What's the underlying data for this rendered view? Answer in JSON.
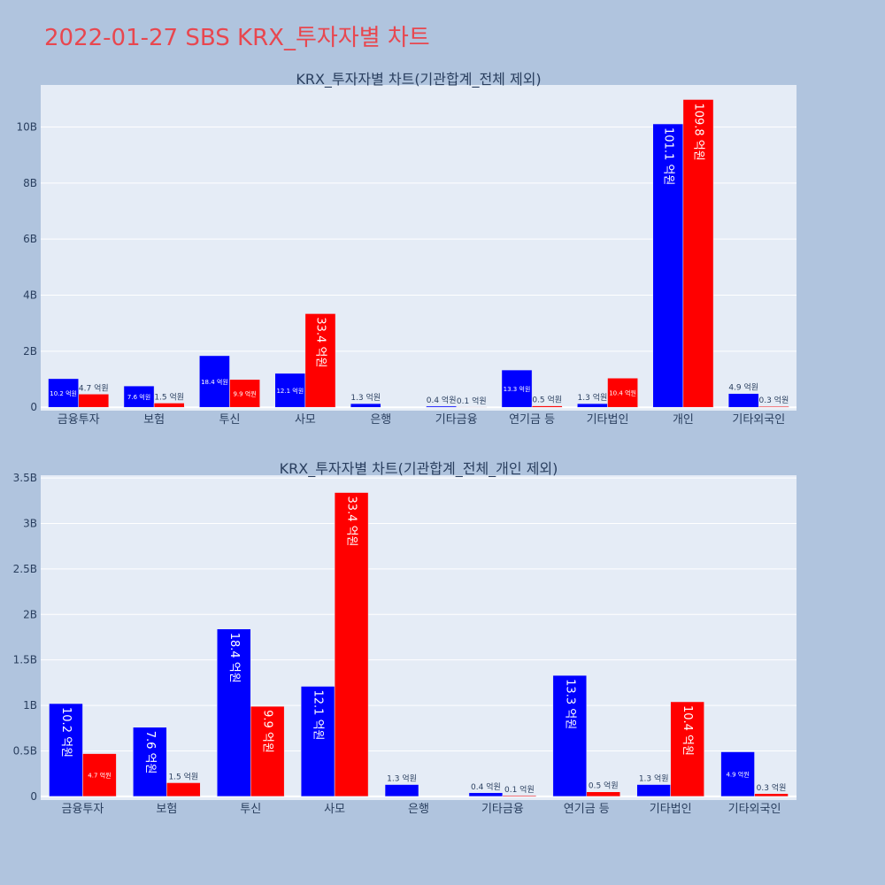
{
  "page": {
    "title": "2022-01-27 SBS KRX_투자자별 차트"
  },
  "colors": {
    "background": "#b0c4de",
    "plot_bg": "#e5ecf6",
    "title": "#e8474f",
    "series_blue": "#0000ff",
    "series_red": "#ff0000"
  },
  "chart_data": [
    {
      "type": "bar",
      "title": "KRX_투자자별 차트(기관합계_전체 제외)",
      "categories": [
        "금융투자",
        "보험",
        "투신",
        "사모",
        "은행",
        "기타금융",
        "연기금 등",
        "기타법인",
        "개인",
        "기타외국인"
      ],
      "series": [
        {
          "color": "#0000ff",
          "values": [
            1.02,
            0.76,
            1.84,
            1.21,
            0.13,
            0.04,
            1.33,
            0.13,
            10.11,
            0.49
          ],
          "labels": [
            "10.2 억원",
            "7.6 억원",
            "18.4 억원",
            "12.1 억원",
            "1.3 억원",
            "0.4 억원",
            "13.3 억원",
            "1.3 억원",
            "101.1 억원",
            "4.9 억원"
          ]
        },
        {
          "color": "#ff0000",
          "values": [
            0.47,
            0.15,
            0.99,
            3.34,
            0.0,
            0.01,
            0.05,
            1.04,
            10.98,
            0.03
          ],
          "labels": [
            "4.7 억원",
            "1.5 억원",
            "9.9 억원",
            "33.4 억원",
            "",
            "0.1 억원",
            "0.5 억원",
            "10.4 억원",
            "109.8 억원",
            "0.3 억원"
          ]
        }
      ],
      "yticks": [
        0,
        2,
        4,
        6,
        8,
        10
      ],
      "ytick_labels": [
        "0",
        "2B",
        "4B",
        "6B",
        "8B",
        "10B"
      ],
      "ylim": [
        -0.12,
        11.5
      ],
      "grid": true,
      "legend": "none"
    },
    {
      "type": "bar",
      "title": "KRX_투자자별 차트(기관합계_전체_개인 제외)",
      "categories": [
        "금융투자",
        "보험",
        "투신",
        "사모",
        "은행",
        "기타금융",
        "연기금 등",
        "기타법인",
        "기타외국인"
      ],
      "series": [
        {
          "color": "#0000ff",
          "values": [
            1.02,
            0.76,
            1.84,
            1.21,
            0.13,
            0.04,
            1.33,
            0.13,
            0.49
          ],
          "labels": [
            "10.2 억원",
            "7.6 억원",
            "18.4 억원",
            "12.1 억원",
            "1.3 억원",
            "0.4 억원",
            "13.3 억원",
            "1.3 억원",
            "4.9 억원"
          ]
        },
        {
          "color": "#ff0000",
          "values": [
            0.47,
            0.15,
            0.99,
            3.34,
            0.0,
            0.01,
            0.05,
            1.04,
            0.03
          ],
          "labels": [
            "4.7 억원",
            "1.5 억원",
            "9.9 억원",
            "33.4 억원",
            "",
            "0.1 억원",
            "0.5 억원",
            "10.4 억원",
            "0.3 억원"
          ]
        }
      ],
      "yticks": [
        0,
        0.5,
        1,
        1.5,
        2,
        2.5,
        3,
        3.5
      ],
      "ytick_labels": [
        "0",
        "0.5B",
        "1B",
        "1.5B",
        "2B",
        "2.5B",
        "3B",
        "3.5B"
      ],
      "ylim": [
        -0.04,
        3.53
      ],
      "grid": true,
      "legend": "none"
    }
  ]
}
